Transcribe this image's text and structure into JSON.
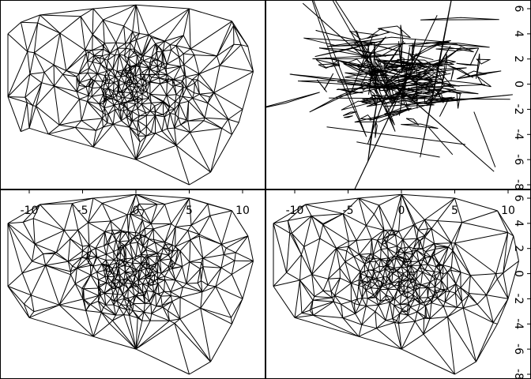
{
  "figure": {
    "layout": "2x2 panels",
    "background": "#ffffff",
    "line_color": "#000000"
  },
  "chart_data": [
    {
      "type": "scatter",
      "subtype": "triangulated mesh (line segments)",
      "panel": "top-left",
      "xlim": [
        -12,
        12
      ],
      "ylim": [
        -8,
        6.5
      ],
      "x_ticks": [],
      "y_ticks": [],
      "cluster_center": [
        0,
        0
      ],
      "hull": [
        [
          -12,
          4
        ],
        [
          -9,
          5.5
        ],
        [
          -4,
          6
        ],
        [
          0,
          6.3
        ],
        [
          5,
          6
        ],
        [
          9,
          5
        ],
        [
          10.5,
          3
        ],
        [
          11,
          1
        ],
        [
          10,
          -2
        ],
        [
          9,
          -4
        ],
        [
          7,
          -7
        ],
        [
          5,
          -8
        ],
        [
          0,
          -6
        ],
        [
          -4,
          -5
        ],
        [
          -10,
          -3.5
        ],
        [
          -12,
          -1
        ]
      ]
    },
    {
      "type": "scatter",
      "subtype": "line segments / triangles",
      "panel": "top-right",
      "xlim": [
        -12,
        12
      ],
      "ylim": [
        -8,
        6.5
      ],
      "x_ticks": [],
      "y_ticks": [
        "-8",
        "-6",
        "-4",
        "-2",
        "0",
        "2",
        "4",
        "6"
      ],
      "cluster_center": [
        0,
        0
      ]
    },
    {
      "type": "scatter",
      "subtype": "triangulated mesh (line segments)",
      "panel": "bottom-left",
      "xlim": [
        -12,
        12
      ],
      "ylim": [
        -8,
        6.5
      ],
      "x_ticks": [
        "-10",
        "-5",
        "0",
        "5",
        "10"
      ],
      "y_ticks": [],
      "cluster_center": [
        0,
        0
      ],
      "hull": [
        [
          -12,
          4
        ],
        [
          -9,
          5.5
        ],
        [
          -4,
          6
        ],
        [
          0,
          6.3
        ],
        [
          5,
          6
        ],
        [
          9,
          5
        ],
        [
          10.5,
          3
        ],
        [
          11,
          1
        ],
        [
          10,
          -2
        ],
        [
          9,
          -4
        ],
        [
          7,
          -7
        ],
        [
          5,
          -8
        ],
        [
          0,
          -6
        ],
        [
          -4,
          -5
        ],
        [
          -10,
          -3.5
        ],
        [
          -12,
          -1
        ]
      ]
    },
    {
      "type": "scatter",
      "subtype": "triangulated mesh (line segments)",
      "panel": "bottom-right",
      "xlim": [
        -12,
        12
      ],
      "ylim": [
        -8,
        6.5
      ],
      "x_ticks": [
        "-10",
        "-5",
        "0",
        "5",
        "10"
      ],
      "y_ticks": [
        "-8",
        "-6",
        "-4",
        "-2",
        "0",
        "2",
        "4",
        "6"
      ],
      "cluster_center": [
        0,
        0
      ],
      "hull": [
        [
          -12,
          4
        ],
        [
          -9,
          5.5
        ],
        [
          -4,
          6
        ],
        [
          0,
          6.3
        ],
        [
          5,
          6
        ],
        [
          9,
          5
        ],
        [
          10.5,
          3
        ],
        [
          11,
          1
        ],
        [
          10,
          -2
        ],
        [
          9,
          -4
        ],
        [
          7,
          -7
        ],
        [
          5,
          -8
        ],
        [
          0,
          -6
        ],
        [
          -4,
          -5
        ],
        [
          -10,
          -3.5
        ],
        [
          -12,
          -1
        ]
      ]
    }
  ]
}
